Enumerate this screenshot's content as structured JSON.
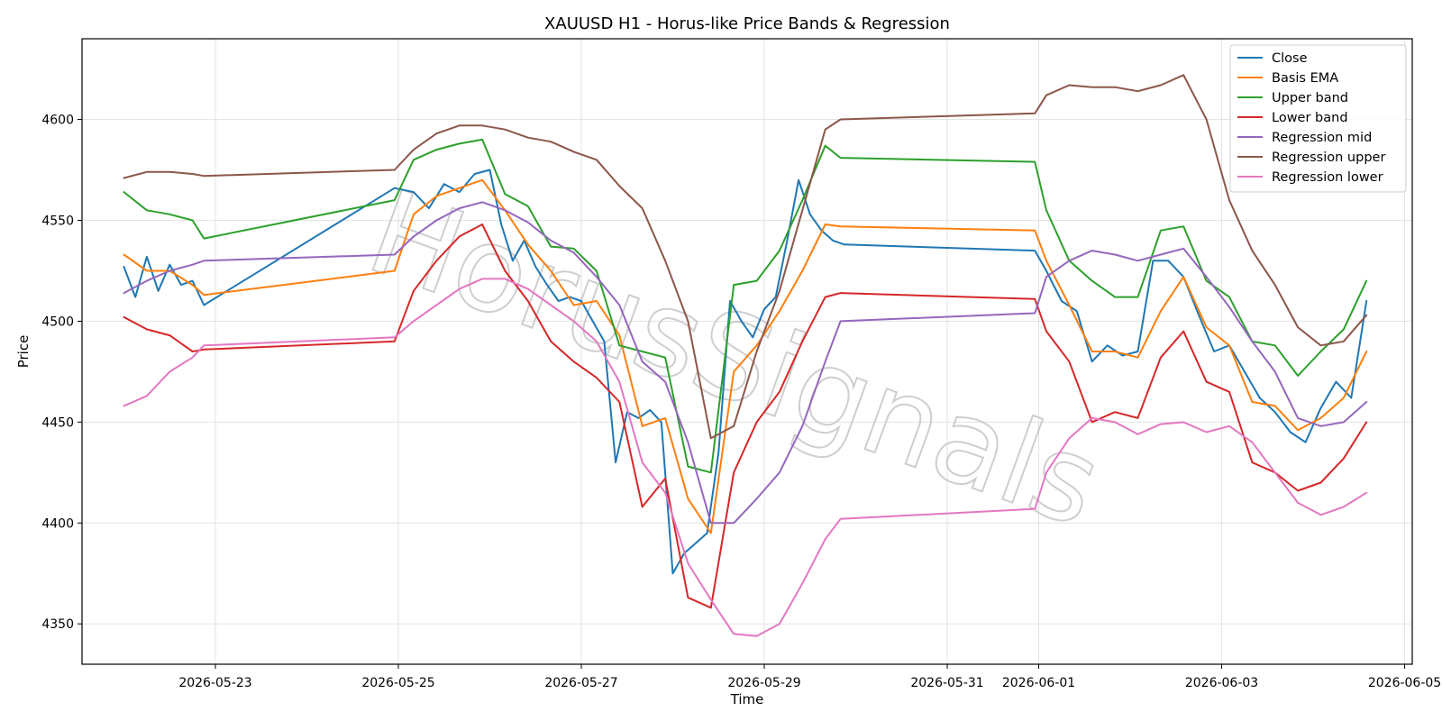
{
  "chart_data": {
    "type": "line",
    "title": "XAUUSD H1 - Horus-like Price Bands & Regression",
    "xlabel": "Time",
    "ylabel": "Price",
    "watermark": "HorusSignals",
    "ylim": [
      4330,
      4640
    ],
    "yticks": [
      4350,
      4400,
      4450,
      4500,
      4550,
      4600
    ],
    "xlim": [
      "2026-05-21T13:00",
      "2026-06-05T02:00"
    ],
    "xticks": [
      "2026-05-23",
      "2026-05-25",
      "2026-05-27",
      "2026-05-29",
      "2026-05-31",
      "2026-06-01",
      "2026-06-03",
      "2026-06-05"
    ],
    "grid": true,
    "legend_position": "top-right",
    "series": [
      {
        "name": "Close",
        "color": "#1f77b4",
        "x": [
          "2026-05-22T00:00",
          "2026-05-22T03:00",
          "2026-05-22T06:00",
          "2026-05-22T09:00",
          "2026-05-22T12:00",
          "2026-05-22T15:00",
          "2026-05-22T18:00",
          "2026-05-22T21:00",
          "2026-05-24T23:00",
          "2026-05-25T04:00",
          "2026-05-25T08:00",
          "2026-05-25T12:00",
          "2026-05-25T16:00",
          "2026-05-25T20:00",
          "2026-05-26T00:00",
          "2026-05-26T03:00",
          "2026-05-26T06:00",
          "2026-05-26T09:00",
          "2026-05-26T12:00",
          "2026-05-26T15:00",
          "2026-05-26T18:00",
          "2026-05-26T21:00",
          "2026-05-27T00:00",
          "2026-05-27T03:00",
          "2026-05-27T06:00",
          "2026-05-27T09:00",
          "2026-05-27T12:00",
          "2026-05-27T15:00",
          "2026-05-27T18:00",
          "2026-05-27T21:00",
          "2026-05-28T00:00",
          "2026-05-28T03:00",
          "2026-05-28T06:00",
          "2026-05-28T09:00",
          "2026-05-28T12:00",
          "2026-05-28T15:00",
          "2026-05-28T18:00",
          "2026-05-28T21:00",
          "2026-05-29T00:00",
          "2026-05-29T03:00",
          "2026-05-29T06:00",
          "2026-05-29T09:00",
          "2026-05-29T12:00",
          "2026-05-29T15:00",
          "2026-05-29T18:00",
          "2026-05-29T21:00",
          "2026-05-31T23:00",
          "2026-06-01T02:00",
          "2026-06-01T06:00",
          "2026-06-01T10:00",
          "2026-06-01T14:00",
          "2026-06-01T18:00",
          "2026-06-01T22:00",
          "2026-06-02T02:00",
          "2026-06-02T06:00",
          "2026-06-02T10:00",
          "2026-06-02T14:00",
          "2026-06-02T18:00",
          "2026-06-02T22:00",
          "2026-06-03T02:00",
          "2026-06-03T06:00",
          "2026-06-03T10:00",
          "2026-06-03T14:00",
          "2026-06-03T18:00",
          "2026-06-03T22:00",
          "2026-06-04T02:00",
          "2026-06-04T06:00",
          "2026-06-04T10:00",
          "2026-06-04T14:00"
        ],
        "values": [
          4527,
          4512,
          4532,
          4515,
          4528,
          4518,
          4520,
          4508,
          4566,
          4564,
          4556,
          4568,
          4564,
          4573,
          4575,
          4548,
          4530,
          4540,
          4527,
          4518,
          4510,
          4512,
          4510,
          4500,
          4490,
          4430,
          4455,
          4452,
          4456,
          4450,
          4375,
          4385,
          4390,
          4395,
          4435,
          4510,
          4500,
          4492,
          4506,
          4512,
          4540,
          4570,
          4553,
          4545,
          4540,
          4538,
          4535,
          4525,
          4510,
          4505,
          4480,
          4488,
          4483,
          4485,
          4530,
          4530,
          4522,
          4503,
          4485,
          4488,
          4475,
          4462,
          4455,
          4445,
          4440,
          4457,
          4470,
          4462,
          4510
        ]
      },
      {
        "name": "Basis EMA",
        "color": "#ff7f0e",
        "x": [
          "2026-05-22T00:00",
          "2026-05-22T06:00",
          "2026-05-22T12:00",
          "2026-05-22T18:00",
          "2026-05-22T21:00",
          "2026-05-24T23:00",
          "2026-05-25T04:00",
          "2026-05-25T10:00",
          "2026-05-25T16:00",
          "2026-05-25T22:00",
          "2026-05-26T04:00",
          "2026-05-26T10:00",
          "2026-05-26T16:00",
          "2026-05-26T22:00",
          "2026-05-27T04:00",
          "2026-05-27T10:00",
          "2026-05-27T16:00",
          "2026-05-27T22:00",
          "2026-05-28T04:00",
          "2026-05-28T10:00",
          "2026-05-28T16:00",
          "2026-05-28T22:00",
          "2026-05-29T04:00",
          "2026-05-29T10:00",
          "2026-05-29T16:00",
          "2026-05-29T20:00",
          "2026-05-31T23:00",
          "2026-06-01T02:00",
          "2026-06-01T08:00",
          "2026-06-01T14:00",
          "2026-06-01T20:00",
          "2026-06-02T02:00",
          "2026-06-02T08:00",
          "2026-06-02T14:00",
          "2026-06-02T20:00",
          "2026-06-03T02:00",
          "2026-06-03T08:00",
          "2026-06-03T14:00",
          "2026-06-03T20:00",
          "2026-06-04T02:00",
          "2026-06-04T08:00",
          "2026-06-04T14:00"
        ],
        "values": [
          4533,
          4525,
          4525,
          4518,
          4513,
          4525,
          4553,
          4562,
          4566,
          4570,
          4555,
          4538,
          4525,
          4508,
          4510,
          4493,
          4448,
          4452,
          4412,
          4395,
          4475,
          4488,
          4505,
          4525,
          4548,
          4547,
          4545,
          4530,
          4508,
          4485,
          4485,
          4482,
          4505,
          4522,
          4497,
          4488,
          4460,
          4458,
          4446,
          4452,
          4462,
          4485
        ]
      },
      {
        "name": "Upper band",
        "color": "#2ca02c",
        "x": [
          "2026-05-22T00:00",
          "2026-05-22T06:00",
          "2026-05-22T12:00",
          "2026-05-22T18:00",
          "2026-05-22T21:00",
          "2026-05-24T23:00",
          "2026-05-25T04:00",
          "2026-05-25T10:00",
          "2026-05-25T16:00",
          "2026-05-25T22:00",
          "2026-05-26T04:00",
          "2026-05-26T10:00",
          "2026-05-26T16:00",
          "2026-05-26T22:00",
          "2026-05-27T04:00",
          "2026-05-27T10:00",
          "2026-05-27T16:00",
          "2026-05-27T22:00",
          "2026-05-28T04:00",
          "2026-05-28T10:00",
          "2026-05-28T16:00",
          "2026-05-28T22:00",
          "2026-05-29T04:00",
          "2026-05-29T10:00",
          "2026-05-29T16:00",
          "2026-05-29T20:00",
          "2026-05-31T23:00",
          "2026-06-01T02:00",
          "2026-06-01T08:00",
          "2026-06-01T14:00",
          "2026-06-01T20:00",
          "2026-06-02T02:00",
          "2026-06-02T08:00",
          "2026-06-02T14:00",
          "2026-06-02T20:00",
          "2026-06-03T02:00",
          "2026-06-03T08:00",
          "2026-06-03T14:00",
          "2026-06-03T20:00",
          "2026-06-04T02:00",
          "2026-06-04T08:00",
          "2026-06-04T14:00"
        ],
        "values": [
          4564,
          4555,
          4553,
          4550,
          4541,
          4560,
          4580,
          4585,
          4588,
          4590,
          4563,
          4557,
          4537,
          4536,
          4525,
          4488,
          4485,
          4482,
          4428,
          4425,
          4518,
          4520,
          4535,
          4560,
          4587,
          4581,
          4579,
          4555,
          4530,
          4520,
          4512,
          4512,
          4545,
          4547,
          4520,
          4512,
          4490,
          4488,
          4473,
          4485,
          4496,
          4520
        ]
      },
      {
        "name": "Lower band",
        "color": "#d62728",
        "x": [
          "2026-05-22T00:00",
          "2026-05-22T06:00",
          "2026-05-22T12:00",
          "2026-05-22T18:00",
          "2026-05-22T21:00",
          "2026-05-24T23:00",
          "2026-05-25T04:00",
          "2026-05-25T10:00",
          "2026-05-25T16:00",
          "2026-05-25T22:00",
          "2026-05-26T04:00",
          "2026-05-26T10:00",
          "2026-05-26T16:00",
          "2026-05-26T22:00",
          "2026-05-27T04:00",
          "2026-05-27T10:00",
          "2026-05-27T16:00",
          "2026-05-27T22:00",
          "2026-05-28T04:00",
          "2026-05-28T10:00",
          "2026-05-28T16:00",
          "2026-05-28T22:00",
          "2026-05-29T04:00",
          "2026-05-29T10:00",
          "2026-05-29T16:00",
          "2026-05-29T20:00",
          "2026-05-31T23:00",
          "2026-06-01T02:00",
          "2026-06-01T08:00",
          "2026-06-01T14:00",
          "2026-06-01T20:00",
          "2026-06-02T02:00",
          "2026-06-02T08:00",
          "2026-06-02T14:00",
          "2026-06-02T20:00",
          "2026-06-03T02:00",
          "2026-06-03T08:00",
          "2026-06-03T14:00",
          "2026-06-03T20:00",
          "2026-06-04T02:00",
          "2026-06-04T08:00",
          "2026-06-04T14:00"
        ],
        "values": [
          4502,
          4496,
          4493,
          4485,
          4486,
          4490,
          4515,
          4530,
          4542,
          4548,
          4525,
          4510,
          4490,
          4480,
          4472,
          4460,
          4408,
          4422,
          4363,
          4358,
          4425,
          4450,
          4465,
          4490,
          4512,
          4514,
          4511,
          4495,
          4480,
          4450,
          4455,
          4452,
          4482,
          4495,
          4470,
          4465,
          4430,
          4425,
          4416,
          4420,
          4432,
          4450
        ]
      },
      {
        "name": "Regression mid",
        "color": "#9467bd",
        "x": [
          "2026-05-22T00:00",
          "2026-05-22T06:00",
          "2026-05-22T12:00",
          "2026-05-22T18:00",
          "2026-05-22T21:00",
          "2026-05-24T23:00",
          "2026-05-25T04:00",
          "2026-05-25T10:00",
          "2026-05-25T16:00",
          "2026-05-25T22:00",
          "2026-05-26T04:00",
          "2026-05-26T10:00",
          "2026-05-26T16:00",
          "2026-05-26T22:00",
          "2026-05-27T04:00",
          "2026-05-27T10:00",
          "2026-05-27T16:00",
          "2026-05-27T22:00",
          "2026-05-28T04:00",
          "2026-05-28T10:00",
          "2026-05-28T16:00",
          "2026-05-28T22:00",
          "2026-05-29T04:00",
          "2026-05-29T10:00",
          "2026-05-29T16:00",
          "2026-05-29T20:00",
          "2026-05-31T23:00",
          "2026-06-01T02:00",
          "2026-06-01T08:00",
          "2026-06-01T14:00",
          "2026-06-01T20:00",
          "2026-06-02T02:00",
          "2026-06-02T08:00",
          "2026-06-02T14:00",
          "2026-06-02T20:00",
          "2026-06-03T02:00",
          "2026-06-03T08:00",
          "2026-06-03T14:00",
          "2026-06-03T20:00",
          "2026-06-04T02:00",
          "2026-06-04T08:00",
          "2026-06-04T14:00"
        ],
        "values": [
          4514,
          4520,
          4525,
          4528,
          4530,
          4533,
          4542,
          4550,
          4556,
          4559,
          4555,
          4549,
          4540,
          4534,
          4522,
          4508,
          4480,
          4470,
          4440,
          4400,
          4400,
          4412,
          4425,
          4448,
          4480,
          4500,
          4504,
          4522,
          4530,
          4535,
          4533,
          4530,
          4533,
          4536,
          4522,
          4507,
          4490,
          4475,
          4452,
          4448,
          4450,
          4460
        ]
      },
      {
        "name": "Regression upper",
        "color": "#8c564b",
        "x": [
          "2026-05-22T00:00",
          "2026-05-22T06:00",
          "2026-05-22T12:00",
          "2026-05-22T18:00",
          "2026-05-22T21:00",
          "2026-05-24T23:00",
          "2026-05-25T04:00",
          "2026-05-25T10:00",
          "2026-05-25T16:00",
          "2026-05-25T22:00",
          "2026-05-26T04:00",
          "2026-05-26T10:00",
          "2026-05-26T16:00",
          "2026-05-26T22:00",
          "2026-05-27T04:00",
          "2026-05-27T10:00",
          "2026-05-27T16:00",
          "2026-05-27T22:00",
          "2026-05-28T04:00",
          "2026-05-28T10:00",
          "2026-05-28T16:00",
          "2026-05-28T22:00",
          "2026-05-29T04:00",
          "2026-05-29T10:00",
          "2026-05-29T16:00",
          "2026-05-29T20:00",
          "2026-05-31T23:00",
          "2026-06-01T02:00",
          "2026-06-01T08:00",
          "2026-06-01T14:00",
          "2026-06-01T20:00",
          "2026-06-02T02:00",
          "2026-06-02T08:00",
          "2026-06-02T14:00",
          "2026-06-02T20:00",
          "2026-06-03T02:00",
          "2026-06-03T08:00",
          "2026-06-03T14:00",
          "2026-06-03T20:00",
          "2026-06-04T02:00",
          "2026-06-04T08:00",
          "2026-06-04T14:00"
        ],
        "values": [
          4571,
          4574,
          4574,
          4573,
          4572,
          4575,
          4585,
          4593,
          4597,
          4597,
          4595,
          4591,
          4589,
          4584,
          4580,
          4567,
          4556,
          4530,
          4500,
          4442,
          4448,
          4485,
          4515,
          4555,
          4595,
          4600,
          4603,
          4612,
          4617,
          4616,
          4616,
          4614,
          4617,
          4622,
          4600,
          4560,
          4535,
          4518,
          4497,
          4488,
          4490,
          4503
        ]
      },
      {
        "name": "Regression lower",
        "color": "#e377c2",
        "x": [
          "2026-05-22T00:00",
          "2026-05-22T06:00",
          "2026-05-22T12:00",
          "2026-05-22T18:00",
          "2026-05-22T21:00",
          "2026-05-24T23:00",
          "2026-05-25T04:00",
          "2026-05-25T10:00",
          "2026-05-25T16:00",
          "2026-05-25T22:00",
          "2026-05-26T04:00",
          "2026-05-26T10:00",
          "2026-05-26T16:00",
          "2026-05-26T22:00",
          "2026-05-27T04:00",
          "2026-05-27T10:00",
          "2026-05-27T16:00",
          "2026-05-27T22:00",
          "2026-05-28T04:00",
          "2026-05-28T10:00",
          "2026-05-28T16:00",
          "2026-05-28T22:00",
          "2026-05-29T04:00",
          "2026-05-29T10:00",
          "2026-05-29T16:00",
          "2026-05-29T20:00",
          "2026-05-31T23:00",
          "2026-06-01T02:00",
          "2026-06-01T08:00",
          "2026-06-01T14:00",
          "2026-06-01T20:00",
          "2026-06-02T02:00",
          "2026-06-02T08:00",
          "2026-06-02T14:00",
          "2026-06-02T20:00",
          "2026-06-03T02:00",
          "2026-06-03T08:00",
          "2026-06-03T14:00",
          "2026-06-03T20:00",
          "2026-06-04T02:00",
          "2026-06-04T08:00",
          "2026-06-04T14:00"
        ],
        "values": [
          4458,
          4463,
          4475,
          4482,
          4488,
          4492,
          4500,
          4508,
          4516,
          4521,
          4521,
          4516,
          4508,
          4500,
          4490,
          4470,
          4430,
          4415,
          4380,
          4362,
          4345,
          4344,
          4350,
          4370,
          4392,
          4402,
          4407,
          4425,
          4442,
          4452,
          4450,
          4444,
          4449,
          4450,
          4445,
          4448,
          4440,
          4425,
          4410,
          4404,
          4408,
          4415
        ]
      }
    ]
  }
}
